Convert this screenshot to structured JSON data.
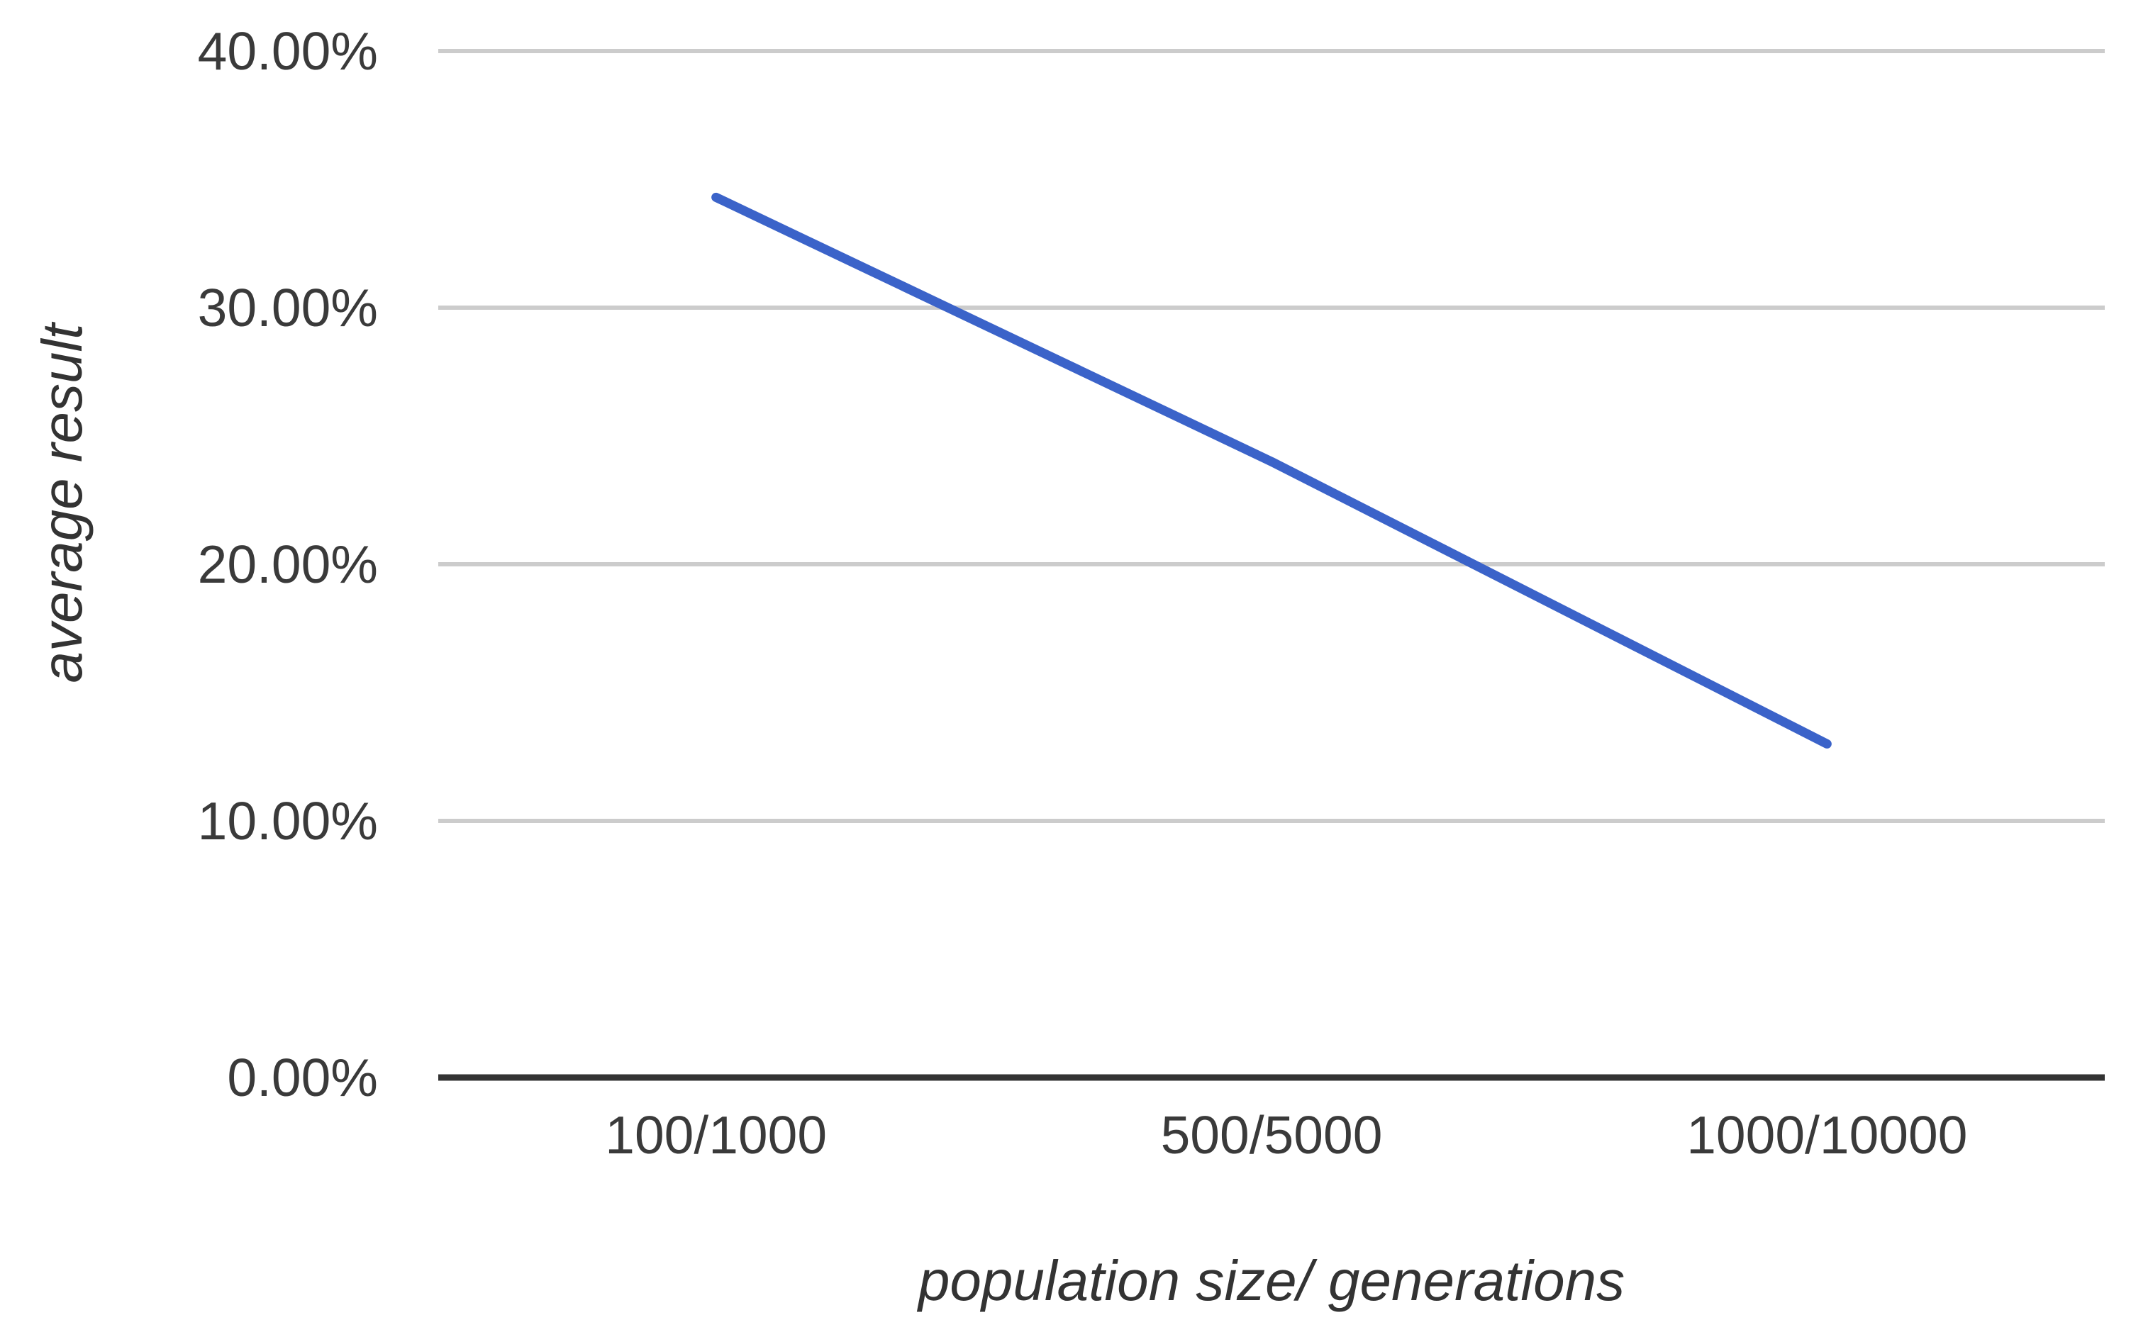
{
  "chart_data": {
    "type": "line",
    "categories": [
      "100/1000",
      "500/5000",
      "1000/10000"
    ],
    "series": [
      {
        "values": [
          34.3,
          24.0,
          13.0
        ]
      }
    ],
    "title": "",
    "xlabel": "population size/ generations",
    "ylabel": "average result",
    "ylim": [
      0,
      40
    ],
    "ytick_values": [
      0,
      10,
      20,
      30,
      40
    ],
    "ytick_labels": [
      "0.00%",
      "10.00%",
      "20.00%",
      "30.00%",
      "40.00%"
    ],
    "grid": true,
    "legend": "none"
  },
  "colors": {
    "series_line": "#3B63C9",
    "gridline": "#CCCCCC",
    "axis_line": "#333333",
    "tick_text": "#3A3A3A",
    "title_text": "#333333",
    "background": "#FFFFFF"
  }
}
